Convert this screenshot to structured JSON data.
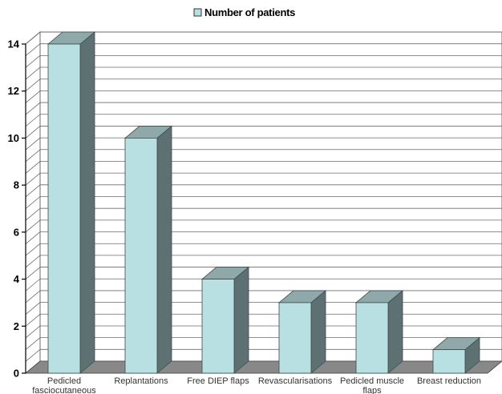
{
  "chart_data": {
    "type": "bar",
    "categories": [
      "Pedicled fasciocutaneous flaps",
      "Replantations",
      "Free DIEP flaps",
      "Revascularisations",
      "Pedicled muscle flaps",
      "Breast reduction"
    ],
    "series": [
      {
        "name": "Number of patients",
        "values": [
          14,
          10,
          4,
          3,
          3,
          1
        ]
      }
    ],
    "title": "",
    "xlabel": "",
    "ylabel": "",
    "ylim": [
      0,
      14
    ],
    "yticks": [
      0,
      2,
      4,
      6,
      8,
      10,
      12,
      14
    ],
    "minor_grid_step": 0.5,
    "grid": true,
    "legend": "top-center",
    "three_d": true,
    "colors": {
      "bar_front": "#b8e0e3",
      "bar_side": "#5e7172",
      "bar_top": "#8fa8aa",
      "floor": "#888888",
      "grid": "#6b6b6b",
      "back_wall": "#ffffff",
      "side_wall": "#ffffff",
      "axis": "#000000"
    }
  }
}
